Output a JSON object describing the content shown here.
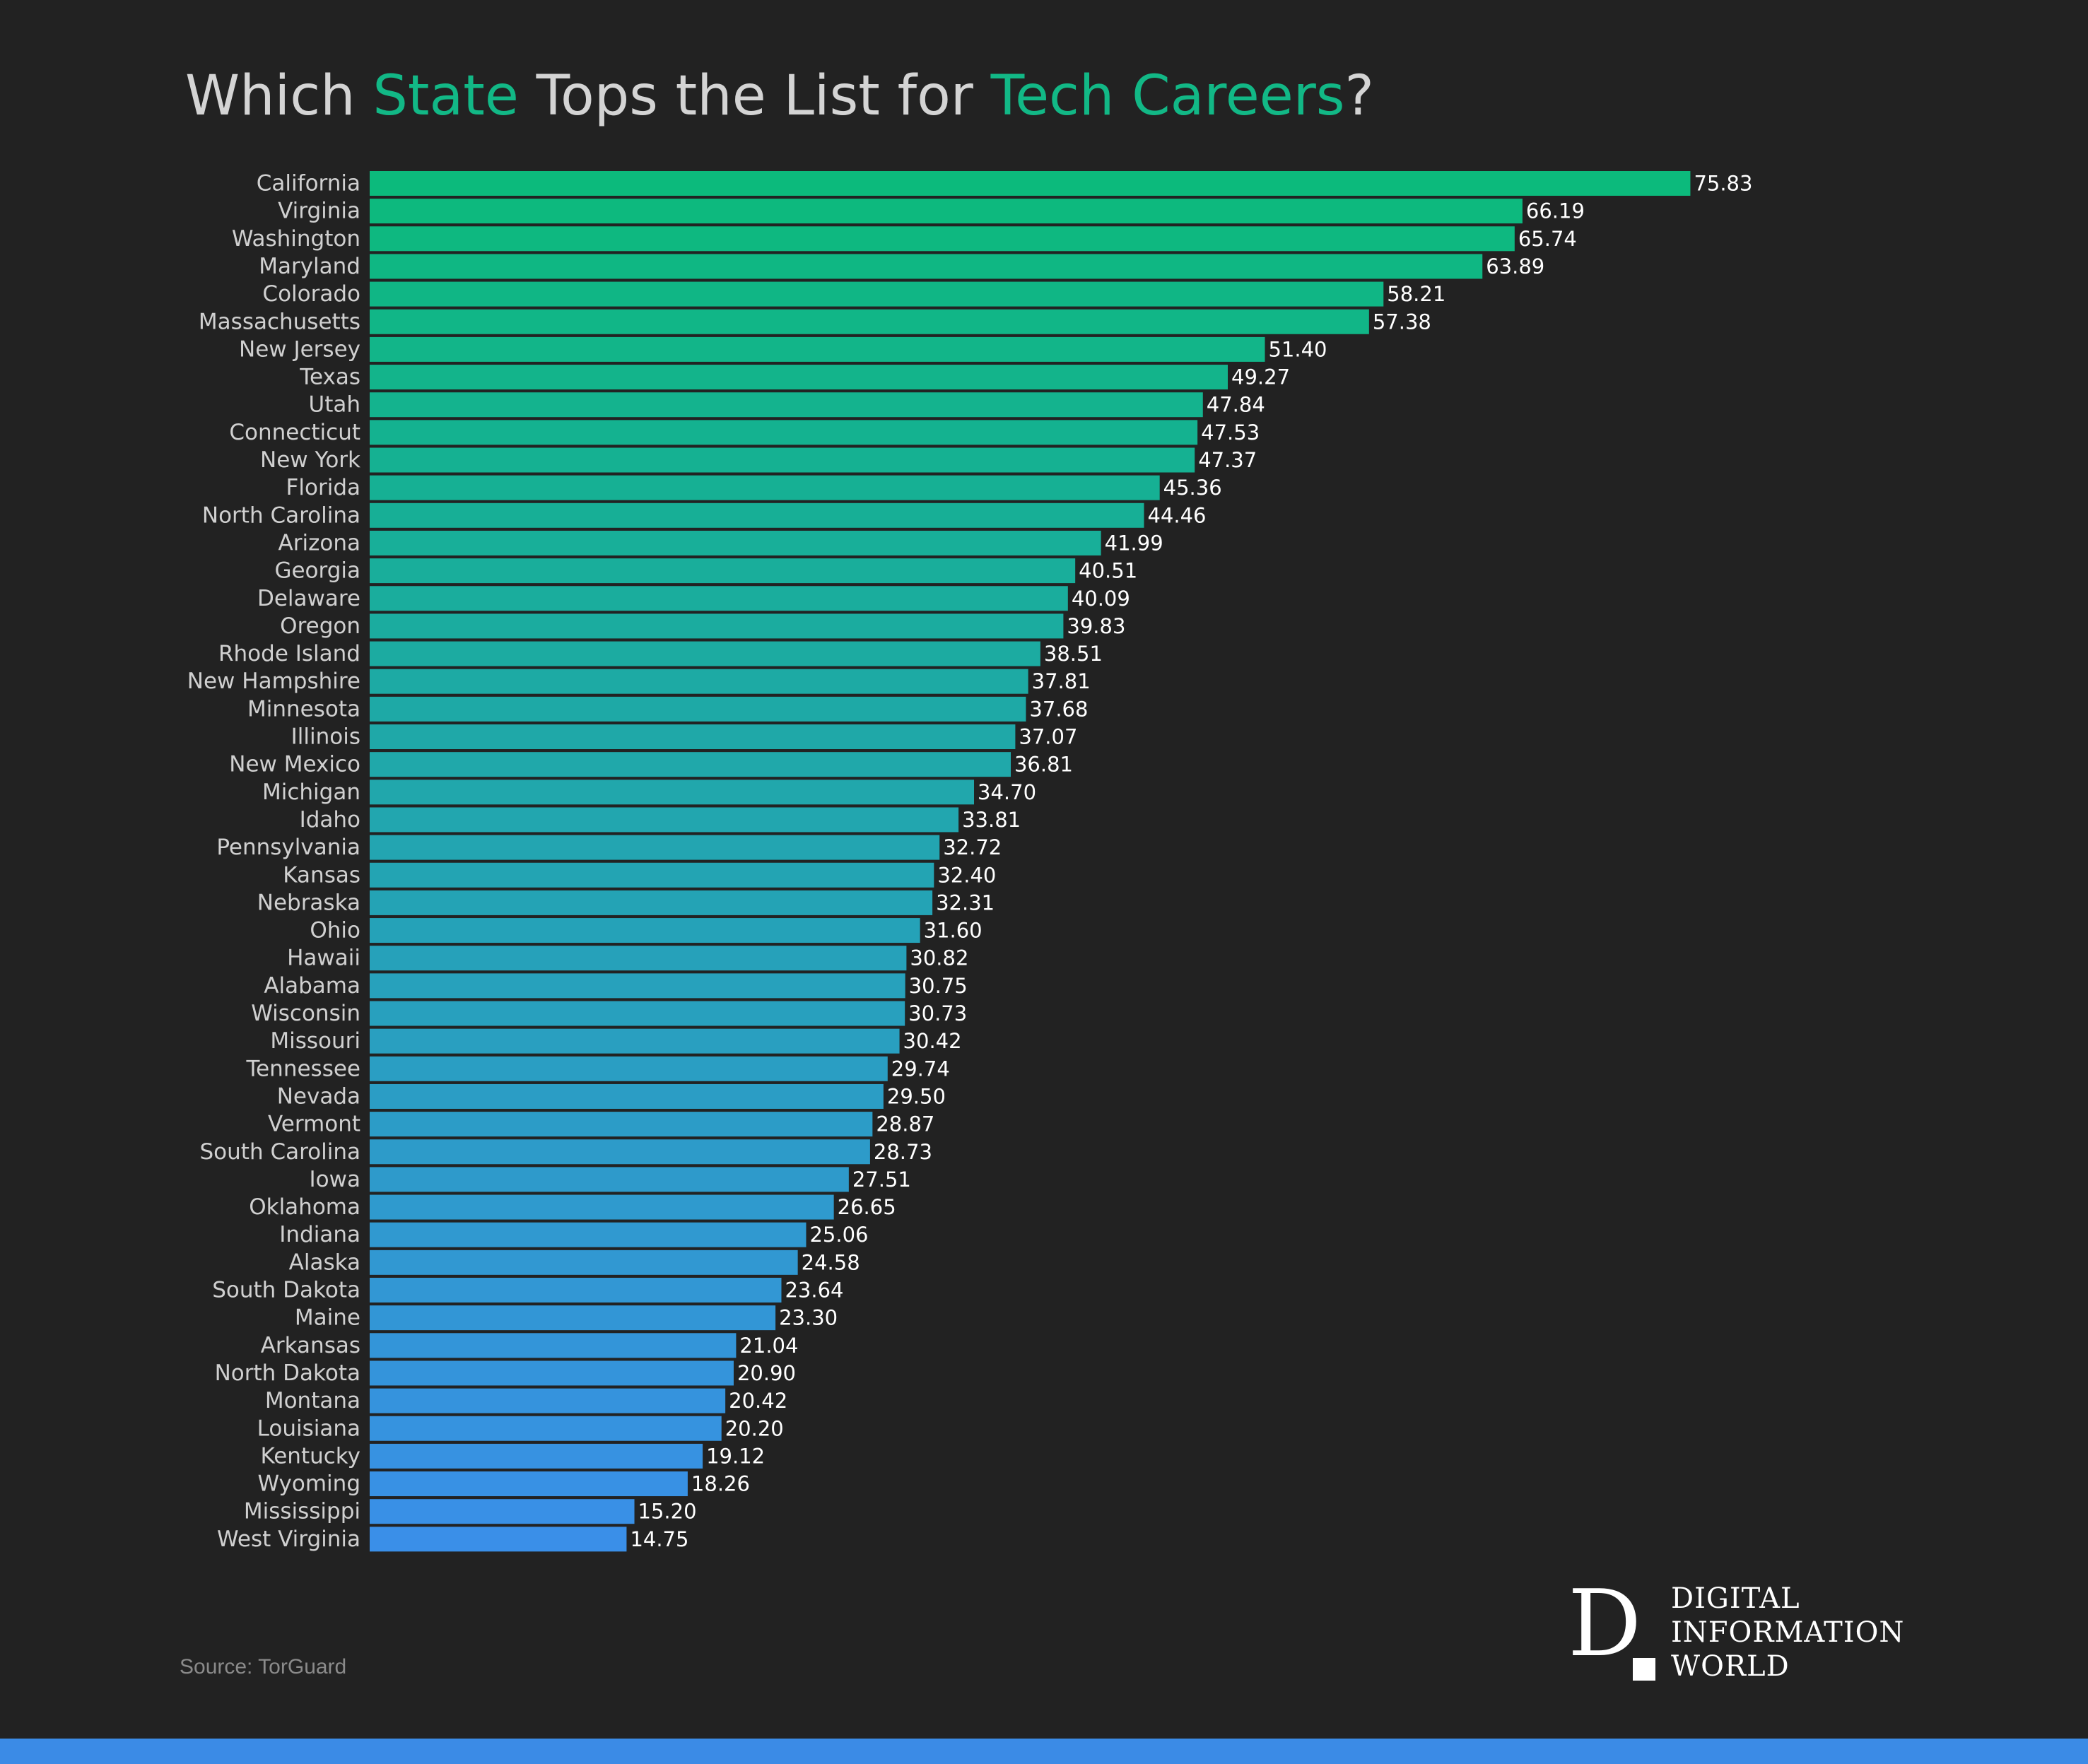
{
  "title": {
    "p1": "Which ",
    "h1": "State",
    "p2": " Tops the List for ",
    "h2": "Tech Careers",
    "p3": "?"
  },
  "source": "Source: TorGuard",
  "logo": {
    "mark": "D",
    "line1": "DIGITAL",
    "line2": "INFORMATION",
    "line3": "WORLD"
  },
  "colors": {
    "background": "#222222",
    "title": "#d4d4d4",
    "accent": "#12b886",
    "bar_top": "#0cba7c",
    "bar_bottom": "#3a8fe8",
    "bottom_bar": "#3b8be6"
  },
  "chart_data": {
    "type": "bar",
    "orientation": "horizontal",
    "title": "Which State Tops the List for Tech Careers?",
    "xlabel": "",
    "ylabel": "",
    "grid": false,
    "xlim": [
      0,
      80
    ],
    "categories": [
      "California",
      "Virginia",
      "Washington",
      "Maryland",
      "Colorado",
      "Massachusetts",
      "New Jersey",
      "Texas",
      "Utah",
      "Connecticut",
      "New York",
      "Florida",
      "North Carolina",
      "Arizona",
      "Georgia",
      "Delaware",
      "Oregon",
      "Rhode Island",
      "New Hampshire",
      "Minnesota",
      "Illinois",
      "New Mexico",
      "Michigan",
      "Idaho",
      "Pennsylvania",
      "Kansas",
      "Nebraska",
      "Ohio",
      "Hawaii",
      "Alabama",
      "Wisconsin",
      "Missouri",
      "Tennessee",
      "Nevada",
      "Vermont",
      "South Carolina",
      "Iowa",
      "Oklahoma",
      "Indiana",
      "Alaska",
      "South Dakota",
      "Maine",
      "Arkansas",
      "North Dakota",
      "Montana",
      "Louisiana",
      "Kentucky",
      "Wyoming",
      "Mississippi",
      "West Virginia"
    ],
    "values": [
      75.83,
      66.19,
      65.74,
      63.89,
      58.21,
      57.38,
      51.4,
      49.27,
      47.84,
      47.53,
      47.37,
      45.36,
      44.46,
      41.99,
      40.51,
      40.09,
      39.83,
      38.51,
      37.81,
      37.68,
      37.07,
      36.81,
      34.7,
      33.81,
      32.72,
      32.4,
      32.31,
      31.6,
      30.82,
      30.75,
      30.73,
      30.42,
      29.74,
      29.5,
      28.87,
      28.73,
      27.51,
      26.65,
      25.06,
      24.58,
      23.64,
      23.3,
      21.04,
      20.9,
      20.42,
      20.2,
      19.12,
      18.26,
      15.2,
      14.75
    ],
    "labels": [
      "75.83",
      "66.19",
      "65.74",
      "63.89",
      "58.21",
      "57.38",
      "51.40",
      "49.27",
      "47.84",
      "47.53",
      "47.37",
      "45.36",
      "44.46",
      "41.99",
      "40.51",
      "40.09",
      "39.83",
      "38.51",
      "37.81",
      "37.68",
      "37.07",
      "36.81",
      "34.70",
      "33.81",
      "32.72",
      "32.40",
      "32.31",
      "31.60",
      "30.82",
      "30.75",
      "30.73",
      "30.42",
      "29.74",
      "29.50",
      "28.87",
      "28.73",
      "27.51",
      "26.65",
      "25.06",
      "24.58",
      "23.64",
      "23.30",
      "21.04",
      "20.90",
      "20.42",
      "20.20",
      "19.12",
      "18.26",
      "15.20",
      "14.75"
    ]
  }
}
